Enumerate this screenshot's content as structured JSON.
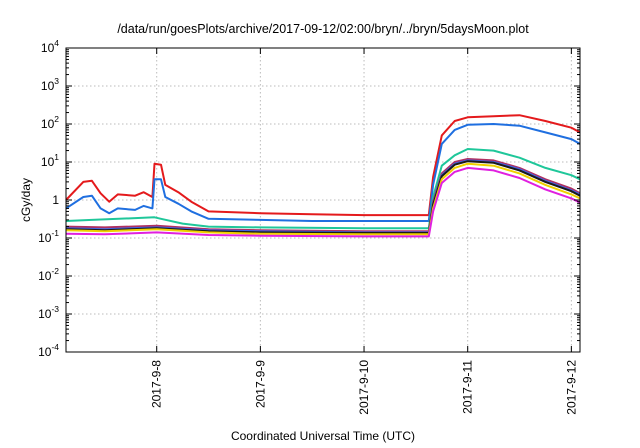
{
  "chart_data": {
    "type": "line",
    "title": "/data/run/goesPlots/archive/2017-09-12/02:00/bryn/../bryn/5daysMoon.plot",
    "xlabel": "Coordinated Universal Time (UTC)",
    "ylabel": "cGy/day",
    "y_scale": "log",
    "ylim": [
      0.0001,
      10000
    ],
    "xlim": [
      "2017-09-07T03:00",
      "2017-09-12T02:00"
    ],
    "grid": true,
    "legend": "none",
    "y_ticks": [
      {
        "base": "10",
        "exp": "-4"
      },
      {
        "base": "10",
        "exp": "-3"
      },
      {
        "base": "10",
        "exp": "-2"
      },
      {
        "base": "10",
        "exp": "-1"
      },
      {
        "base": "1",
        "exp": ""
      },
      {
        "base": "10",
        "exp": "1"
      },
      {
        "base": "10",
        "exp": "2"
      },
      {
        "base": "10",
        "exp": "3"
      },
      {
        "base": "10",
        "exp": "4"
      }
    ],
    "x_ticks": [
      {
        "label": "2017-9-8",
        "t": "2017-09-08T00:00"
      },
      {
        "label": "2017-9-9",
        "t": "2017-09-09T00:00"
      },
      {
        "label": "2017-9-10",
        "t": "2017-09-10T00:00"
      },
      {
        "label": "2017-9-11",
        "t": "2017-09-11T00:00"
      },
      {
        "label": "2017-9-12",
        "t": "2017-09-12T00:00"
      }
    ],
    "series": [
      {
        "color": "#e41a1c",
        "points": [
          [
            "2017-09-07T03:00",
            1.0
          ],
          [
            "2017-09-07T07:00",
            3.0
          ],
          [
            "2017-09-07T09:00",
            3.2
          ],
          [
            "2017-09-07T11:00",
            1.5
          ],
          [
            "2017-09-07T13:00",
            0.9
          ],
          [
            "2017-09-07T15:00",
            1.4
          ],
          [
            "2017-09-07T19:00",
            1.3
          ],
          [
            "2017-09-07T21:00",
            1.6
          ],
          [
            "2017-09-07T23:00",
            1.2
          ],
          [
            "2017-09-07T23:30",
            9.0
          ],
          [
            "2017-09-08T01:00",
            8.5
          ],
          [
            "2017-09-08T02:00",
            2.5
          ],
          [
            "2017-09-08T05:00",
            1.6
          ],
          [
            "2017-09-08T08:00",
            0.9
          ],
          [
            "2017-09-08T12:00",
            0.5
          ],
          [
            "2017-09-09T00:00",
            0.45
          ],
          [
            "2017-09-09T12:00",
            0.42
          ],
          [
            "2017-09-10T00:00",
            0.4
          ],
          [
            "2017-09-10T12:00",
            0.4
          ],
          [
            "2017-09-10T15:00",
            0.4
          ],
          [
            "2017-09-10T16:00",
            4.0
          ],
          [
            "2017-09-10T18:00",
            50
          ],
          [
            "2017-09-10T21:00",
            120
          ],
          [
            "2017-09-11T00:00",
            150
          ],
          [
            "2017-09-11T06:00",
            160
          ],
          [
            "2017-09-11T12:00",
            170
          ],
          [
            "2017-09-11T18:00",
            120
          ],
          [
            "2017-09-12T00:00",
            80
          ],
          [
            "2017-09-12T02:00",
            60
          ]
        ]
      },
      {
        "color": "#1f6fe0",
        "points": [
          [
            "2017-09-07T03:00",
            0.6
          ],
          [
            "2017-09-07T07:00",
            1.2
          ],
          [
            "2017-09-07T09:00",
            1.3
          ],
          [
            "2017-09-07T11:00",
            0.6
          ],
          [
            "2017-09-07T13:00",
            0.45
          ],
          [
            "2017-09-07T15:00",
            0.6
          ],
          [
            "2017-09-07T19:00",
            0.55
          ],
          [
            "2017-09-07T21:00",
            0.7
          ],
          [
            "2017-09-07T23:00",
            0.6
          ],
          [
            "2017-09-07T23:30",
            3.5
          ],
          [
            "2017-09-08T01:00",
            3.5
          ],
          [
            "2017-09-08T02:00",
            1.2
          ],
          [
            "2017-09-08T05:00",
            0.8
          ],
          [
            "2017-09-08T08:00",
            0.5
          ],
          [
            "2017-09-08T12:00",
            0.32
          ],
          [
            "2017-09-09T00:00",
            0.3
          ],
          [
            "2017-09-09T12:00",
            0.28
          ],
          [
            "2017-09-10T00:00",
            0.28
          ],
          [
            "2017-09-10T12:00",
            0.28
          ],
          [
            "2017-09-10T15:00",
            0.28
          ],
          [
            "2017-09-10T16:00",
            2.5
          ],
          [
            "2017-09-10T18:00",
            30
          ],
          [
            "2017-09-10T21:00",
            70
          ],
          [
            "2017-09-11T00:00",
            95
          ],
          [
            "2017-09-11T06:00",
            100
          ],
          [
            "2017-09-11T12:00",
            90
          ],
          [
            "2017-09-11T18:00",
            60
          ],
          [
            "2017-09-12T00:00",
            40
          ],
          [
            "2017-09-12T02:00",
            30
          ]
        ]
      },
      {
        "color": "#1fc79a",
        "points": [
          [
            "2017-09-07T03:00",
            0.28
          ],
          [
            "2017-09-07T09:00",
            0.3
          ],
          [
            "2017-09-07T23:30",
            0.35
          ],
          [
            "2017-09-08T01:00",
            0.32
          ],
          [
            "2017-09-08T06:00",
            0.24
          ],
          [
            "2017-09-08T12:00",
            0.2
          ],
          [
            "2017-09-09T00:00",
            0.19
          ],
          [
            "2017-09-10T00:00",
            0.18
          ],
          [
            "2017-09-10T15:00",
            0.18
          ],
          [
            "2017-09-10T16:00",
            1.2
          ],
          [
            "2017-09-10T18:00",
            8
          ],
          [
            "2017-09-10T21:00",
            15
          ],
          [
            "2017-09-11T00:00",
            22
          ],
          [
            "2017-09-11T06:00",
            20
          ],
          [
            "2017-09-11T12:00",
            13
          ],
          [
            "2017-09-11T18:00",
            7
          ],
          [
            "2017-09-12T00:00",
            4.5
          ],
          [
            "2017-09-12T02:00",
            3.5
          ]
        ]
      },
      {
        "color": "#b03060",
        "points": [
          [
            "2017-09-07T03:00",
            0.2
          ],
          [
            "2017-09-07T12:00",
            0.19
          ],
          [
            "2017-09-08T00:00",
            0.21
          ],
          [
            "2017-09-08T12:00",
            0.17
          ],
          [
            "2017-09-09T00:00",
            0.16
          ],
          [
            "2017-09-10T00:00",
            0.15
          ],
          [
            "2017-09-10T15:00",
            0.15
          ],
          [
            "2017-09-10T16:00",
            0.9
          ],
          [
            "2017-09-10T18:00",
            5
          ],
          [
            "2017-09-10T21:00",
            10
          ],
          [
            "2017-09-11T00:00",
            12
          ],
          [
            "2017-09-11T06:00",
            11
          ],
          [
            "2017-09-11T12:00",
            7
          ],
          [
            "2017-09-11T18:00",
            3.5
          ],
          [
            "2017-09-12T00:00",
            2.0
          ],
          [
            "2017-09-12T02:00",
            1.5
          ]
        ]
      },
      {
        "color": "#4060e0",
        "points": [
          [
            "2017-09-07T03:00",
            0.18
          ],
          [
            "2017-09-07T12:00",
            0.17
          ],
          [
            "2017-09-08T00:00",
            0.19
          ],
          [
            "2017-09-08T12:00",
            0.16
          ],
          [
            "2017-09-09T00:00",
            0.15
          ],
          [
            "2017-09-10T00:00",
            0.14
          ],
          [
            "2017-09-10T15:00",
            0.14
          ],
          [
            "2017-09-10T16:00",
            0.8
          ],
          [
            "2017-09-10T18:00",
            4.5
          ],
          [
            "2017-09-10T21:00",
            9
          ],
          [
            "2017-09-11T00:00",
            11
          ],
          [
            "2017-09-11T06:00",
            10
          ],
          [
            "2017-09-11T12:00",
            6.5
          ],
          [
            "2017-09-11T18:00",
            3.2
          ],
          [
            "2017-09-12T00:00",
            1.8
          ],
          [
            "2017-09-12T02:00",
            1.4
          ]
        ]
      },
      {
        "color": "#1a1a1a",
        "points": [
          [
            "2017-09-07T03:00",
            0.17
          ],
          [
            "2017-09-07T12:00",
            0.16
          ],
          [
            "2017-09-08T00:00",
            0.18
          ],
          [
            "2017-09-08T12:00",
            0.15
          ],
          [
            "2017-09-09T00:00",
            0.14
          ],
          [
            "2017-09-10T00:00",
            0.135
          ],
          [
            "2017-09-10T15:00",
            0.135
          ],
          [
            "2017-09-10T16:00",
            0.75
          ],
          [
            "2017-09-10T18:00",
            4.2
          ],
          [
            "2017-09-10T21:00",
            8.5
          ],
          [
            "2017-09-11T00:00",
            10.5
          ],
          [
            "2017-09-11T06:00",
            9.5
          ],
          [
            "2017-09-11T12:00",
            6.0
          ],
          [
            "2017-09-11T18:00",
            3.0
          ],
          [
            "2017-09-12T00:00",
            1.7
          ],
          [
            "2017-09-12T02:00",
            1.3
          ]
        ]
      },
      {
        "color": "#f0d000",
        "points": [
          [
            "2017-09-07T03:00",
            0.16
          ],
          [
            "2017-09-07T12:00",
            0.15
          ],
          [
            "2017-09-08T00:00",
            0.17
          ],
          [
            "2017-09-08T12:00",
            0.14
          ],
          [
            "2017-09-09T00:00",
            0.13
          ],
          [
            "2017-09-10T00:00",
            0.125
          ],
          [
            "2017-09-10T15:00",
            0.125
          ],
          [
            "2017-09-10T16:00",
            0.6
          ],
          [
            "2017-09-10T18:00",
            3.5
          ],
          [
            "2017-09-10T21:00",
            7
          ],
          [
            "2017-09-11T00:00",
            9
          ],
          [
            "2017-09-11T06:00",
            8
          ],
          [
            "2017-09-11T12:00",
            5
          ],
          [
            "2017-09-11T18:00",
            2.5
          ],
          [
            "2017-09-12T00:00",
            1.4
          ],
          [
            "2017-09-12T02:00",
            1.1
          ]
        ]
      },
      {
        "color": "#e020e0",
        "points": [
          [
            "2017-09-07T03:00",
            0.13
          ],
          [
            "2017-09-07T12:00",
            0.125
          ],
          [
            "2017-09-08T00:00",
            0.14
          ],
          [
            "2017-09-08T12:00",
            0.12
          ],
          [
            "2017-09-09T00:00",
            0.115
          ],
          [
            "2017-09-10T00:00",
            0.11
          ],
          [
            "2017-09-10T15:00",
            0.11
          ],
          [
            "2017-09-10T16:00",
            0.5
          ],
          [
            "2017-09-10T18:00",
            2.8
          ],
          [
            "2017-09-10T21:00",
            5.5
          ],
          [
            "2017-09-11T00:00",
            7
          ],
          [
            "2017-09-11T06:00",
            6
          ],
          [
            "2017-09-11T12:00",
            3.8
          ],
          [
            "2017-09-11T18:00",
            1.9
          ],
          [
            "2017-09-12T00:00",
            1.1
          ],
          [
            "2017-09-12T02:00",
            0.85
          ]
        ]
      }
    ]
  }
}
